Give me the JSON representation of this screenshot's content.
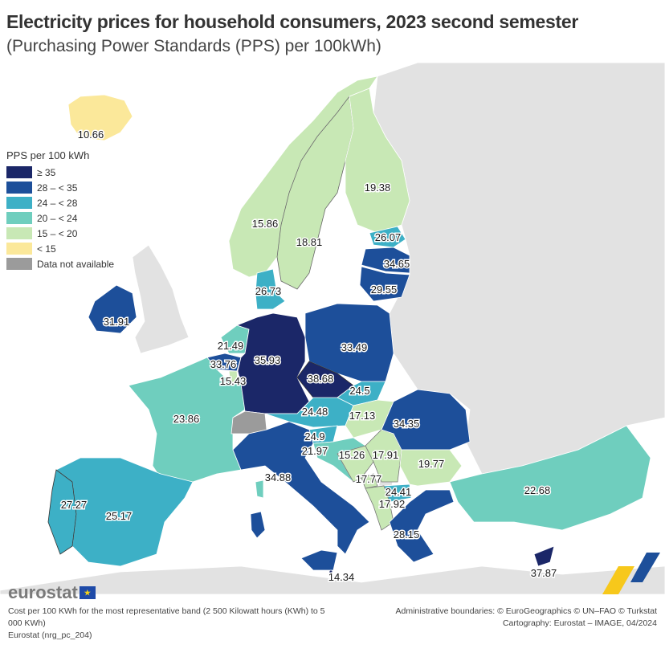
{
  "title": "Electricity prices for household consumers, 2023 second semester",
  "subtitle": "(Purchasing Power Standards (PPS) per 100kWh)",
  "legend": {
    "title": "PPS per 100 kWh",
    "classes": [
      {
        "label": "≥ 35",
        "color": "#1b2768"
      },
      {
        "label": "28 – < 35",
        "color": "#1d4f9a"
      },
      {
        "label": "24 – < 28",
        "color": "#3db0c6"
      },
      {
        "label": "20 – < 24",
        "color": "#6fcebe"
      },
      {
        "label": "15 – < 20",
        "color": "#c8e8b5"
      },
      {
        "label": "< 15",
        "color": "#fbe89a"
      },
      {
        "label": "Data not available",
        "color": "#9b9b9b"
      }
    ]
  },
  "countries": {
    "iceland": "10.66",
    "norway": "15.86",
    "sweden": "18.81",
    "finland": "19.38",
    "estonia": "26.07",
    "latvia": "34.65",
    "lithuania": "29.55",
    "denmark": "26.73",
    "ireland": "31.91",
    "netherlands": "21.49",
    "belgium": "33.76",
    "luxembourg": "15.43",
    "germany": "35.93",
    "czechia": "38.68",
    "poland": "33.49",
    "slovakia": "24.5",
    "austria": "24.48",
    "hungary": "17.13",
    "slovenia": "24.9",
    "croatia": "21.97",
    "bosnia": "15.26",
    "serbia": "17.91",
    "montenegro": "17.77",
    "north_macedonia": "24.41",
    "albania": "17.92",
    "romania": "34.35",
    "bulgaria": "19.77",
    "greece": "28.15",
    "cyprus": "37.87",
    "turkey": "22.68",
    "france": "23.86",
    "italy": "34.88",
    "malta": "14.34",
    "spain": "25.17",
    "portugal": "27.27"
  },
  "logo": "eurostat",
  "footer": {
    "note": "Cost per 100 KWh for the most representative band (2 500 Kilowatt hours (KWh) to 5 000 KWh)",
    "source": "Eurostat (nrg_pc_204)",
    "boundaries": "Administrative boundaries: © EuroGeographics © UN–FAO © Turkstat",
    "cartography": "Cartography: Eurostat – IMAGE, 04/2024"
  }
}
